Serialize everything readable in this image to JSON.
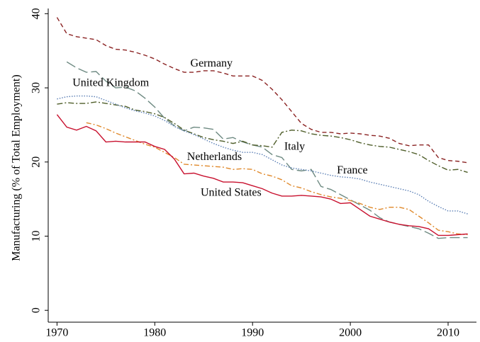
{
  "chart_data": {
    "type": "line",
    "y_label": "Manufacturing (% of Total Employment)",
    "x": [
      1970,
      1971,
      1972,
      1973,
      1974,
      1975,
      1976,
      1977,
      1978,
      1979,
      1980,
      1981,
      1982,
      1983,
      1984,
      1985,
      1986,
      1987,
      1988,
      1989,
      1990,
      1991,
      1992,
      1993,
      1994,
      1995,
      1996,
      1997,
      1998,
      1999,
      2000,
      2001,
      2002,
      2003,
      2004,
      2005,
      2006,
      2007,
      2008,
      2009,
      2010,
      2011,
      2012
    ],
    "xlim": [
      1969.1,
      2012.9
    ],
    "xticks": [
      1970,
      1980,
      1990,
      2000,
      2010
    ],
    "ylim": [
      -1.6,
      40.7
    ],
    "yticks": [
      0,
      10,
      20,
      30,
      40
    ],
    "series": [
      {
        "name": "Germany",
        "color": "#8b2323",
        "dash": "6,4",
        "values": [
          39.5,
          37.3,
          36.9,
          36.7,
          36.5,
          35.7,
          35.2,
          35.1,
          34.8,
          34.4,
          33.9,
          33.2,
          32.6,
          32.1,
          32.1,
          32.3,
          32.3,
          32.0,
          31.6,
          31.6,
          31.6,
          31.0,
          29.8,
          28.4,
          26.8,
          25.2,
          24.4,
          24.0,
          24.0,
          23.8,
          23.9,
          23.8,
          23.6,
          23.5,
          23.2,
          22.5,
          22.2,
          22.3,
          22.3,
          20.6,
          20.2,
          20.1,
          19.9
        ]
      },
      {
        "name": "United Kingdom",
        "color": "#6e8a82",
        "dash": "14,5",
        "values": [
          null,
          33.5,
          32.7,
          32.1,
          32.2,
          30.9,
          30.0,
          30.1,
          29.6,
          28.6,
          27.4,
          25.9,
          24.9,
          24.2,
          24.7,
          24.6,
          24.4,
          23.1,
          23.3,
          22.7,
          22.3,
          22.0,
          21.0,
          20.6,
          19.0,
          18.8,
          19.0,
          16.7,
          16.3,
          15.6,
          14.9,
          14.2,
          13.5,
          12.5,
          11.9,
          11.6,
          11.3,
          11.0,
          10.4,
          9.7,
          9.8,
          9.8,
          9.8
        ]
      },
      {
        "name": "Italy",
        "color": "#4f5e2a",
        "dash": "8,3,2,3",
        "values": [
          27.8,
          28.0,
          27.9,
          27.9,
          28.1,
          27.9,
          27.7,
          27.5,
          27.0,
          26.8,
          26.5,
          26.0,
          25.2,
          24.3,
          23.8,
          23.3,
          23.0,
          22.8,
          22.5,
          22.8,
          22.3,
          22.2,
          22.0,
          24.0,
          24.3,
          24.2,
          23.8,
          23.6,
          23.5,
          23.3,
          23.0,
          22.6,
          22.3,
          22.1,
          22.0,
          21.7,
          21.4,
          21.0,
          20.2,
          19.5,
          18.9,
          19.0,
          18.6
        ]
      },
      {
        "name": "France",
        "color": "#5b7fb5",
        "dash": "1.5,2",
        "values": [
          28.5,
          28.8,
          28.9,
          28.9,
          28.8,
          28.3,
          27.8,
          27.3,
          26.9,
          26.6,
          26.2,
          25.6,
          24.8,
          24.2,
          23.7,
          23.1,
          22.5,
          22.0,
          21.6,
          21.3,
          21.3,
          21.0,
          20.3,
          19.6,
          19.2,
          19.0,
          18.8,
          18.5,
          18.2,
          18.0,
          17.9,
          17.7,
          17.3,
          17.0,
          16.7,
          16.4,
          16.1,
          15.6,
          14.7,
          14.0,
          13.4,
          13.4,
          13.0
        ]
      },
      {
        "name": "Netherlands",
        "color": "#e0892b",
        "dash": "7,3,2,3",
        "values": [
          null,
          null,
          null,
          25.3,
          25.0,
          24.5,
          23.9,
          23.4,
          22.9,
          22.4,
          22.0,
          21.3,
          20.6,
          19.7,
          19.6,
          19.5,
          19.4,
          19.3,
          19.0,
          19.1,
          19.0,
          18.4,
          18.1,
          17.6,
          16.8,
          16.5,
          16.0,
          15.6,
          15.3,
          15.1,
          14.8,
          14.4,
          13.9,
          13.6,
          13.9,
          13.9,
          13.6,
          12.7,
          11.8,
          10.8,
          10.6,
          10.3,
          10.2
        ]
      },
      {
        "name": "United States",
        "color": "#c8102e",
        "dash": "none",
        "values": [
          26.4,
          24.7,
          24.3,
          24.8,
          24.2,
          22.7,
          22.8,
          22.7,
          22.7,
          22.7,
          22.1,
          21.7,
          20.4,
          18.4,
          18.5,
          18.1,
          17.8,
          17.3,
          17.3,
          17.2,
          16.8,
          16.4,
          15.8,
          15.4,
          15.4,
          15.5,
          15.4,
          15.3,
          15.0,
          14.4,
          14.5,
          13.6,
          12.7,
          12.3,
          11.9,
          11.6,
          11.4,
          11.3,
          11.0,
          10.1,
          10.1,
          10.2,
          10.3
        ]
      }
    ]
  }
}
